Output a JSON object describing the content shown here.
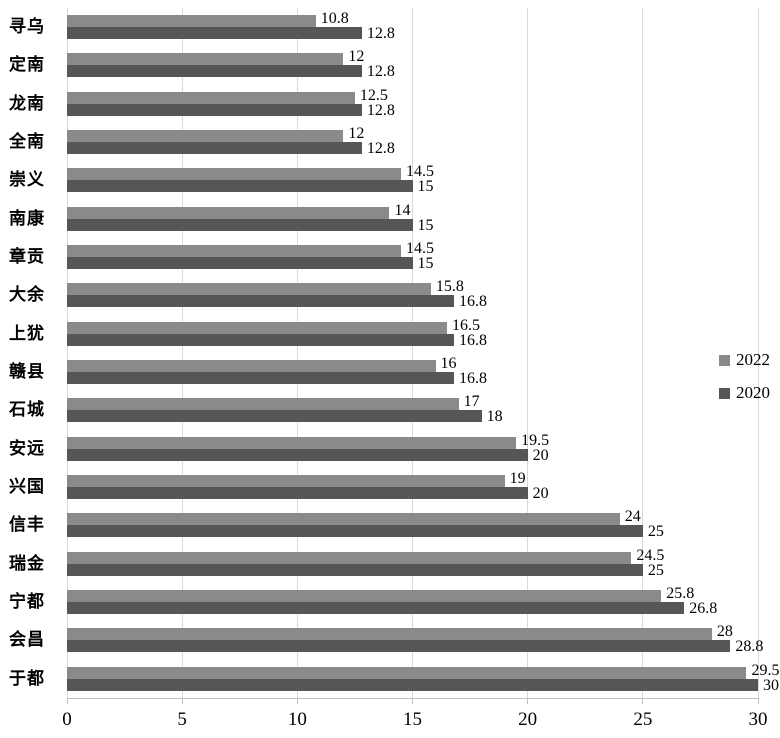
{
  "chart_data": {
    "type": "bar",
    "orientation": "horizontal",
    "categories": [
      "寻乌",
      "定南",
      "龙南",
      "全南",
      "崇义",
      "南康",
      "章贡",
      "大余",
      "上犹",
      "赣县",
      "石城",
      "安远",
      "兴国",
      "信丰",
      "瑞金",
      "宁都",
      "会昌",
      "于都"
    ],
    "series": [
      {
        "name": "2022",
        "color": "#8A8A8A",
        "values": [
          10.8,
          12,
          12.5,
          12,
          14.5,
          14,
          14.5,
          15.8,
          16.5,
          16,
          17,
          19.5,
          19,
          24,
          24.5,
          25.8,
          28,
          29.5
        ],
        "labels": [
          "10.8",
          "12",
          "12.5",
          "12",
          "14.5",
          "14",
          "14.5",
          "15.8",
          "16.5",
          "16",
          "17",
          "19.5",
          "19",
          "24",
          "24.5",
          "25.8",
          "28",
          "29.5"
        ]
      },
      {
        "name": "2020",
        "color": "#565656",
        "values": [
          12.8,
          12.8,
          12.8,
          12.8,
          15,
          15,
          15,
          16.8,
          16.8,
          16.8,
          18,
          20,
          20,
          25,
          25,
          26.8,
          28.8,
          30
        ],
        "labels": [
          "12.8",
          "12.8",
          "12.8",
          "12.8",
          "15",
          "15",
          "15",
          "16.8",
          "16.8",
          "16.8",
          "18",
          "20",
          "20",
          "25",
          "25",
          "26.8",
          "28.8",
          "30"
        ]
      }
    ],
    "xlim": [
      0,
      30
    ],
    "xticks": [
      0,
      5,
      10,
      15,
      20,
      25,
      30
    ],
    "xtick_labels": [
      "0",
      "5",
      "10",
      "15",
      "20",
      "25",
      "30"
    ],
    "legend_position": "middle-right",
    "grid": "vertical",
    "gridline_color": "#D9D9D9",
    "axis_color": "#BFBFBF",
    "text_color": "#000000"
  }
}
